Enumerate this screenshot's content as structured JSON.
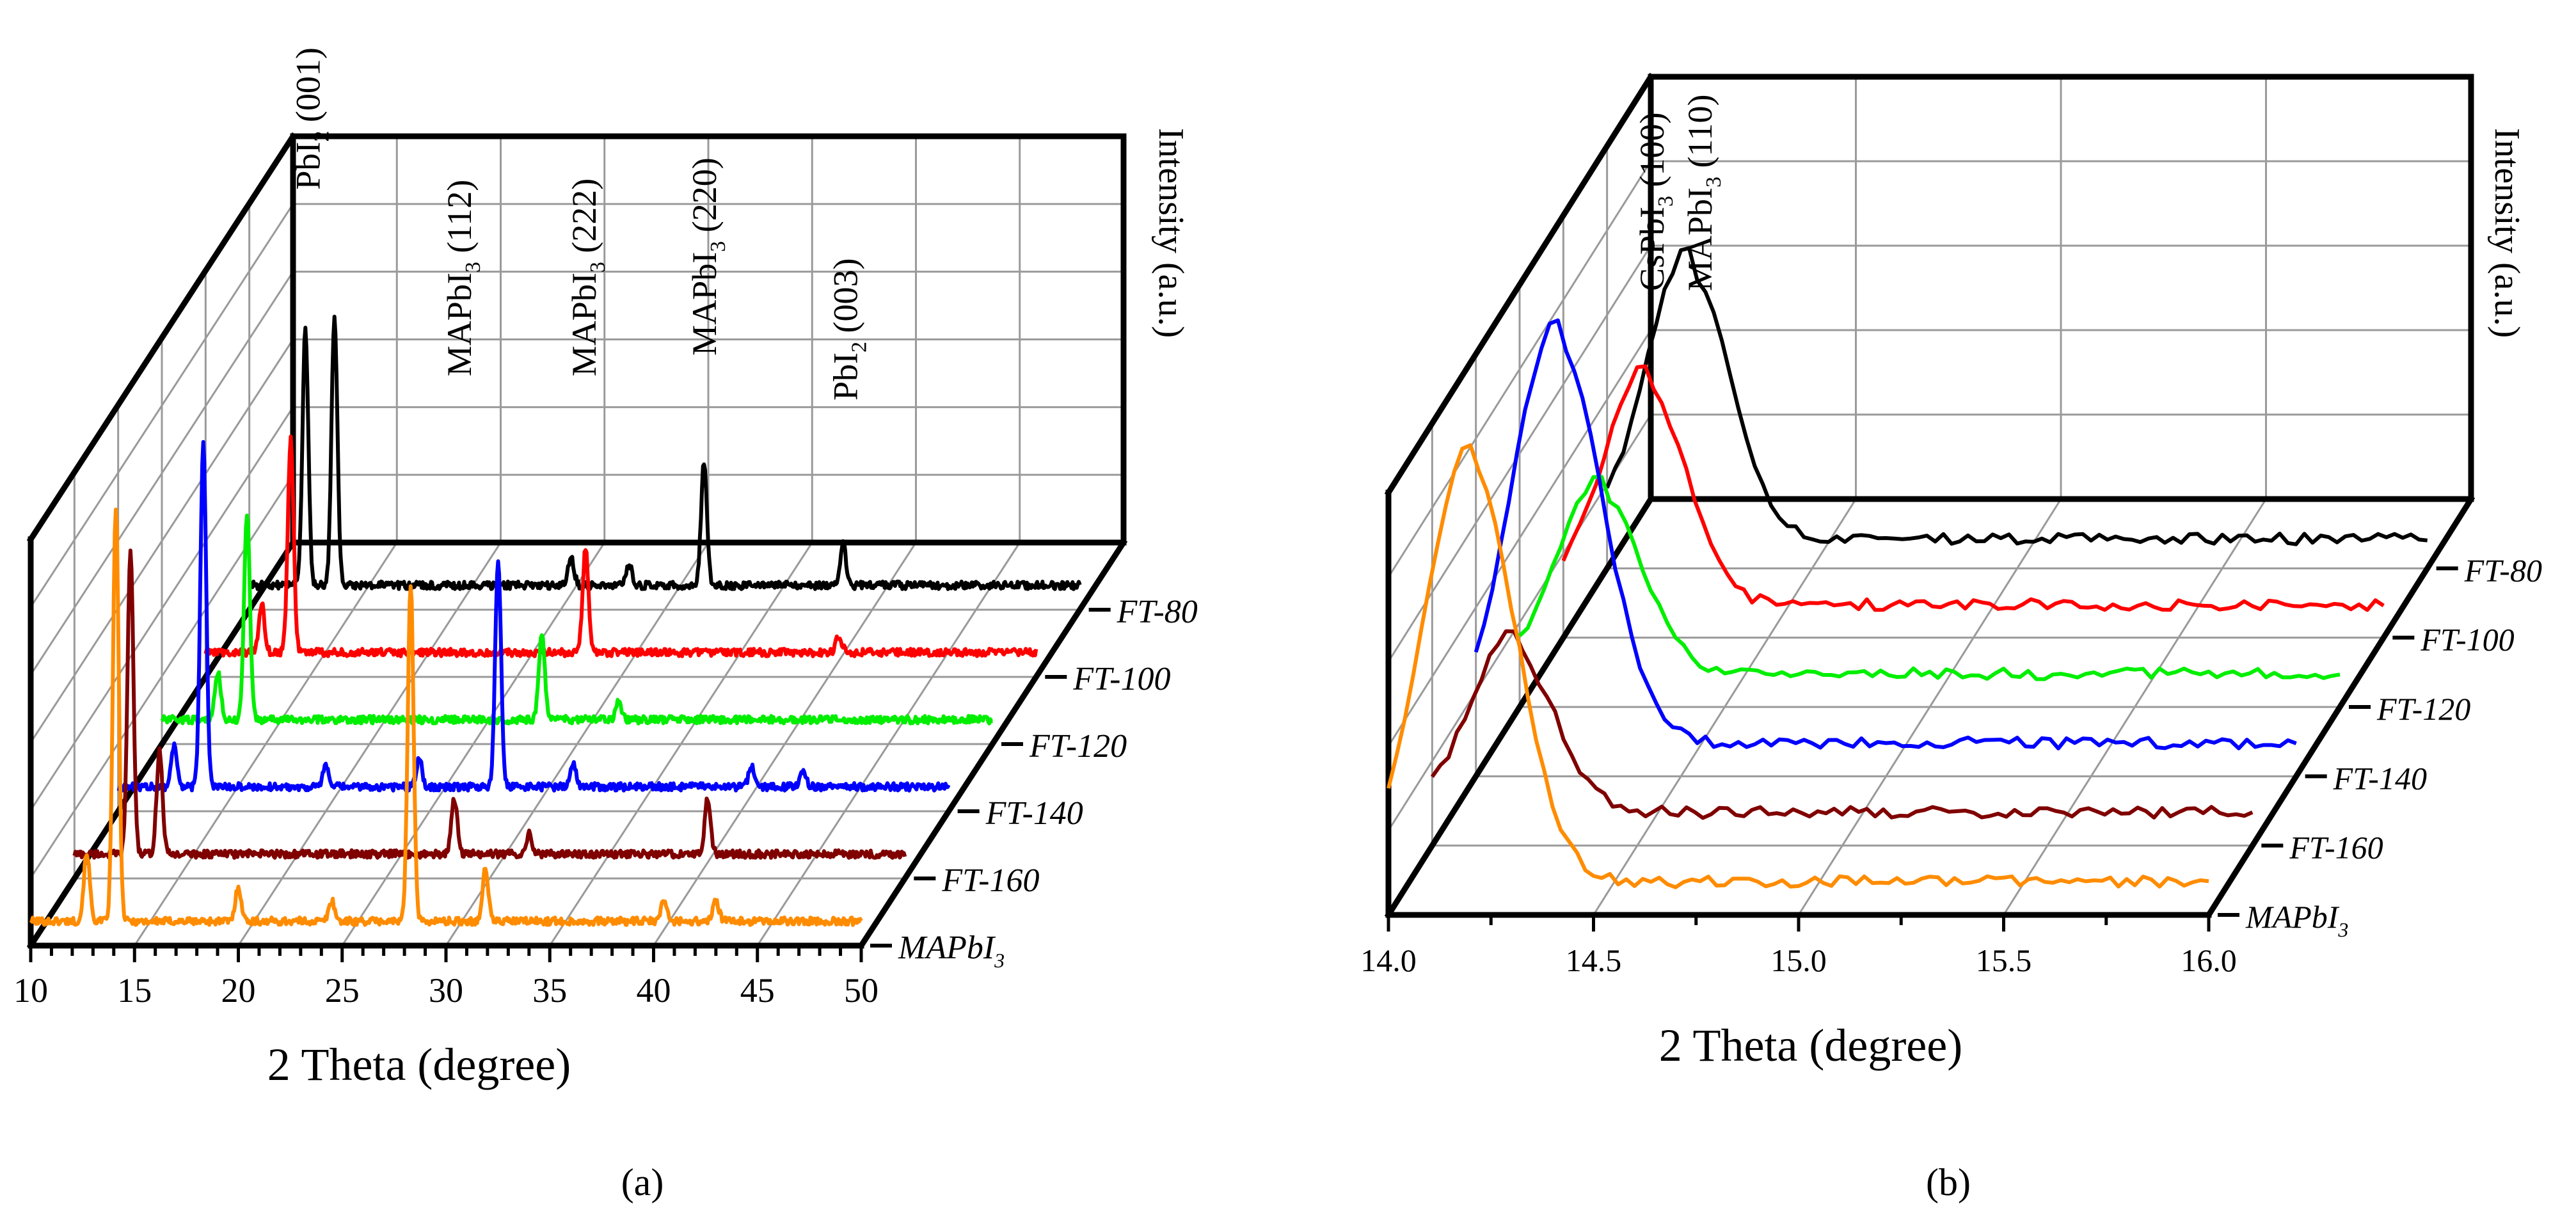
{
  "chart_data": [
    {
      "panel": "a",
      "panel_label": "(a)",
      "type": "line",
      "style": "3d-waterfall",
      "title": "",
      "xlabel": "2 Theta (degree)",
      "ylabel": "Intensity (a.u.)",
      "xlim": [
        10,
        50
      ],
      "xticks": [
        "10",
        "15",
        "20",
        "25",
        "30",
        "35",
        "40",
        "45",
        "50"
      ],
      "series_order_front_to_back": [
        "MAPbI3",
        "FT-160",
        "FT-140",
        "FT-120",
        "FT-100",
        "FT-80"
      ],
      "series": [
        {
          "name": "FT-80",
          "label_main": "FT-80",
          "label_sub": "",
          "color": "#000000",
          "baseline": 0.05,
          "peaks": [
            {
              "x": 12.7,
              "h": 0.74
            },
            {
              "x": 14.1,
              "h": 0.78
            },
            {
              "x": 25.5,
              "h": 0.08
            },
            {
              "x": 28.3,
              "h": 0.06
            },
            {
              "x": 31.9,
              "h": 0.36
            },
            {
              "x": 38.6,
              "h": 0.12
            }
          ]
        },
        {
          "name": "FT-100",
          "label_main": "FT-100",
          "label_sub": "",
          "color": "#ff0000",
          "baseline": 0.05,
          "peaks": [
            {
              "x": 12.7,
              "h": 0.14
            },
            {
              "x": 14.1,
              "h": 0.62
            },
            {
              "x": 28.3,
              "h": 0.3
            },
            {
              "x": 40.5,
              "h": 0.05
            }
          ]
        },
        {
          "name": "FT-120",
          "label_main": "FT-120",
          "label_sub": "",
          "color": "#00ee00",
          "baseline": 0.05,
          "peaks": [
            {
              "x": 12.7,
              "h": 0.14
            },
            {
              "x": 14.1,
              "h": 0.6
            },
            {
              "x": 28.3,
              "h": 0.25
            },
            {
              "x": 32.0,
              "h": 0.05
            }
          ]
        },
        {
          "name": "FT-140",
          "label_main": "FT-140",
          "label_sub": "",
          "color": "#0000ff",
          "baseline": 0.05,
          "peaks": [
            {
              "x": 12.7,
              "h": 0.12
            },
            {
              "x": 14.1,
              "h": 1.0
            },
            {
              "x": 20.0,
              "h": 0.06
            },
            {
              "x": 24.5,
              "h": 0.08
            },
            {
              "x": 28.3,
              "h": 0.66
            },
            {
              "x": 31.9,
              "h": 0.07
            },
            {
              "x": 40.5,
              "h": 0.06
            },
            {
              "x": 43.0,
              "h": 0.05
            }
          ]
        },
        {
          "name": "FT-160",
          "label_main": "FT-160",
          "label_sub": "",
          "color": "#800000",
          "baseline": 0.05,
          "peaks": [
            {
              "x": 12.7,
              "h": 0.88
            },
            {
              "x": 14.1,
              "h": 0.3
            },
            {
              "x": 28.3,
              "h": 0.16
            },
            {
              "x": 31.9,
              "h": 0.06
            },
            {
              "x": 40.5,
              "h": 0.16
            }
          ]
        },
        {
          "name": "MAPbI3",
          "label_main": "MAPbI",
          "label_sub": "3",
          "color": "#ff8c00",
          "baseline": 0.05,
          "peaks": [
            {
              "x": 12.7,
              "h": 0.2
            },
            {
              "x": 14.1,
              "h": 1.2
            },
            {
              "x": 20.0,
              "h": 0.1
            },
            {
              "x": 24.5,
              "h": 0.06
            },
            {
              "x": 28.3,
              "h": 0.98
            },
            {
              "x": 31.9,
              "h": 0.15
            },
            {
              "x": 40.5,
              "h": 0.06
            },
            {
              "x": 43.0,
              "h": 0.06
            }
          ]
        }
      ],
      "annotations": [
        {
          "name": "PbI2-001",
          "main": "PbI",
          "sub": "2",
          "rest": " (001)",
          "x": 12.7,
          "h": 1.16
        },
        {
          "name": "MAPbI3-112",
          "main": "MAPbI",
          "sub": "3",
          "rest": " (112)",
          "x": 20.0,
          "h": 0.62
        },
        {
          "name": "MAPbI3-222",
          "main": "MAPbI",
          "sub": "3",
          "rest": " (222)",
          "x": 26.0,
          "h": 0.62
        },
        {
          "name": "MAPbI3-220",
          "main": "MAPbI",
          "sub": "3",
          "rest": " (220)",
          "x": 31.8,
          "h": 0.68
        },
        {
          "name": "PbI2-003",
          "main": "PbI",
          "sub": "2",
          "rest": " (003)",
          "x": 38.6,
          "h": 0.55
        }
      ]
    },
    {
      "panel": "b",
      "panel_label": "(b)",
      "type": "line",
      "style": "3d-waterfall",
      "title": "",
      "xlabel": "2 Theta (degree)",
      "ylabel": "Intensity (a.u.)",
      "xlim": [
        14.0,
        16.0
      ],
      "xticks": [
        "14.0",
        "14.5",
        "15.0",
        "15.5",
        "16.0"
      ],
      "series_order_front_to_back": [
        "MAPbI3",
        "FT-160",
        "FT-140",
        "FT-120",
        "FT-100",
        "FT-80"
      ],
      "series": [
        {
          "name": "FT-80",
          "label_main": "FT-80",
          "label_sub": "",
          "color": "#000000",
          "baseline": 0.03,
          "peak_x": 14.2,
          "peak_h": 0.72,
          "width": 0.1
        },
        {
          "name": "FT-100",
          "label_main": "FT-100",
          "label_sub": "",
          "color": "#ff0000",
          "baseline": 0.04,
          "peak_x": 14.2,
          "peak_h": 0.58,
          "width": 0.1
        },
        {
          "name": "FT-120",
          "label_main": "FT-120",
          "label_sub": "",
          "color": "#00ee00",
          "baseline": 0.04,
          "peak_x": 14.2,
          "peak_h": 0.47,
          "width": 0.1
        },
        {
          "name": "FT-140",
          "label_main": "FT-140",
          "label_sub": "",
          "color": "#0000ff",
          "baseline": 0.04,
          "peak_x": 14.2,
          "peak_h": 1.08,
          "width": 0.11
        },
        {
          "name": "FT-160",
          "label_main": "FT-160",
          "label_sub": "",
          "color": "#800000",
          "baseline": 0.04,
          "peak_x": 14.2,
          "peak_h": 0.43,
          "width": 0.1
        },
        {
          "name": "MAPbI3",
          "label_main": "MAPbI",
          "label_sub": "3",
          "color": "#ff8c00",
          "baseline": 0.04,
          "peak_x": 14.2,
          "peak_h": 1.12,
          "width": 0.11
        }
      ],
      "annotations": [
        {
          "name": "CsPbI3-100",
          "main": "CsPbI",
          "sub": "3",
          "rest": " (100)"
        },
        {
          "name": "MAPbI3-110",
          "main": "MAPbI",
          "sub": "3",
          "rest": " (110)"
        }
      ]
    }
  ]
}
